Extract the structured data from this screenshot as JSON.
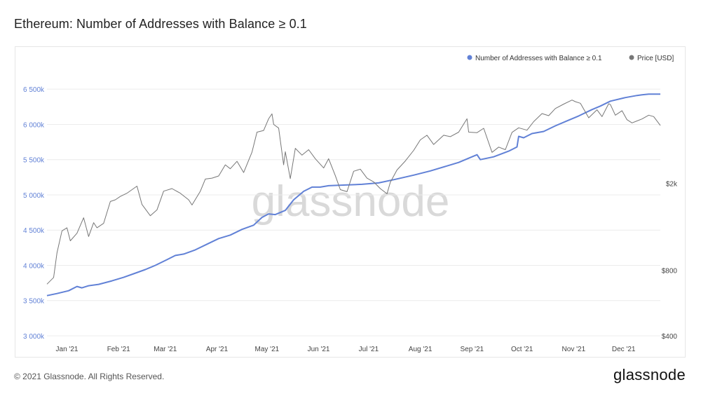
{
  "page": {
    "title": "Ethereum: Number of Addresses with Balance ≥ 0.1",
    "copyright": "© 2021 Glassnode. All Rights Reserved.",
    "logo": "glassnode",
    "watermark": "glassnode"
  },
  "chart_data": {
    "type": "line",
    "title": "Ethereum: Number of Addresses with Balance ≥ 0.1",
    "legend": {
      "placement": "top-right",
      "entries": [
        {
          "label": "Number of Addresses with Balance ≥ 0.1",
          "color": "#6181d6"
        },
        {
          "label": "Price [USD]",
          "color": "#777777"
        }
      ]
    },
    "x_ticks": [
      "Jan '21",
      "Feb '21",
      "Mar '21",
      "Apr '21",
      "May '21",
      "Jun '21",
      "Jul '21",
      "Aug '21",
      "Sep '21",
      "Oct '21",
      "Nov '21",
      "Dec '21"
    ],
    "x_tick_dates": [
      "2021-01-01",
      "2021-02-01",
      "2021-03-01",
      "2021-04-01",
      "2021-05-01",
      "2021-06-01",
      "2021-07-01",
      "2021-08-01",
      "2021-09-01",
      "2021-10-01",
      "2021-11-01",
      "2021-12-01"
    ],
    "x_range": [
      "2020-12-28",
      "2021-12-31"
    ],
    "y_left": {
      "ticks": [
        "3 000k",
        "3 500k",
        "4 000k",
        "4 500k",
        "5 000k",
        "5 500k",
        "6 000k",
        "6 500k"
      ],
      "tick_values": [
        3000000,
        3500000,
        4000000,
        4500000,
        5000000,
        5500000,
        6000000,
        6500000
      ],
      "range": [
        3000000,
        6850000
      ],
      "color": "#6181d6"
    },
    "y_right": {
      "ticks": [
        "$400",
        "$800",
        "$2k"
      ],
      "tick_values": [
        400,
        800,
        2000
      ],
      "scale": "log",
      "range": [
        400,
        7000
      ]
    },
    "grid": true,
    "series": [
      {
        "name": "Number of Addresses with Balance ≥ 0.1",
        "axis": "left",
        "color": "#6181d6",
        "points": [
          [
            "2020-12-28",
            3570000
          ],
          [
            "2021-01-03",
            3600000
          ],
          [
            "2021-01-10",
            3640000
          ],
          [
            "2021-01-15",
            3700000
          ],
          [
            "2021-01-18",
            3680000
          ],
          [
            "2021-01-22",
            3710000
          ],
          [
            "2021-01-28",
            3730000
          ],
          [
            "2021-02-05",
            3780000
          ],
          [
            "2021-02-12",
            3830000
          ],
          [
            "2021-02-18",
            3880000
          ],
          [
            "2021-02-25",
            3940000
          ],
          [
            "2021-03-03",
            4000000
          ],
          [
            "2021-03-10",
            4080000
          ],
          [
            "2021-03-15",
            4140000
          ],
          [
            "2021-03-20",
            4160000
          ],
          [
            "2021-03-27",
            4220000
          ],
          [
            "2021-04-03",
            4300000
          ],
          [
            "2021-04-10",
            4380000
          ],
          [
            "2021-04-17",
            4430000
          ],
          [
            "2021-04-24",
            4510000
          ],
          [
            "2021-05-01",
            4570000
          ],
          [
            "2021-05-06",
            4680000
          ],
          [
            "2021-05-10",
            4730000
          ],
          [
            "2021-05-14",
            4720000
          ],
          [
            "2021-05-20",
            4780000
          ],
          [
            "2021-05-25",
            4930000
          ],
          [
            "2021-05-31",
            5050000
          ],
          [
            "2021-06-05",
            5110000
          ],
          [
            "2021-06-10",
            5110000
          ],
          [
            "2021-06-15",
            5130000
          ],
          [
            "2021-06-25",
            5140000
          ],
          [
            "2021-07-05",
            5150000
          ],
          [
            "2021-07-10",
            5160000
          ],
          [
            "2021-07-15",
            5170000
          ],
          [
            "2021-07-25",
            5220000
          ],
          [
            "2021-08-05",
            5280000
          ],
          [
            "2021-08-15",
            5340000
          ],
          [
            "2021-08-25",
            5410000
          ],
          [
            "2021-09-01",
            5460000
          ],
          [
            "2021-09-08",
            5530000
          ],
          [
            "2021-09-12",
            5570000
          ],
          [
            "2021-09-14",
            5500000
          ],
          [
            "2021-09-22",
            5540000
          ],
          [
            "2021-10-01",
            5620000
          ],
          [
            "2021-10-06",
            5680000
          ],
          [
            "2021-10-07",
            5830000
          ],
          [
            "2021-10-10",
            5810000
          ],
          [
            "2021-10-15",
            5870000
          ],
          [
            "2021-10-22",
            5900000
          ],
          [
            "2021-10-29",
            5980000
          ],
          [
            "2021-11-05",
            6050000
          ],
          [
            "2021-11-12",
            6120000
          ],
          [
            "2021-11-20",
            6210000
          ],
          [
            "2021-11-25",
            6260000
          ],
          [
            "2021-12-01",
            6330000
          ],
          [
            "2021-12-10",
            6380000
          ],
          [
            "2021-12-17",
            6410000
          ],
          [
            "2021-12-20",
            6420000
          ],
          [
            "2021-12-24",
            6430000
          ],
          [
            "2021-12-31",
            6430000
          ]
        ]
      },
      {
        "name": "Price [USD]",
        "axis": "right",
        "color": "#777777",
        "points": [
          [
            "2020-12-28",
            690
          ],
          [
            "2021-01-01",
            740
          ],
          [
            "2021-01-03",
            960
          ],
          [
            "2021-01-06",
            1210
          ],
          [
            "2021-01-09",
            1250
          ],
          [
            "2021-01-11",
            1090
          ],
          [
            "2021-01-15",
            1180
          ],
          [
            "2021-01-19",
            1390
          ],
          [
            "2021-01-22",
            1140
          ],
          [
            "2021-01-25",
            1320
          ],
          [
            "2021-01-27",
            1250
          ],
          [
            "2021-01-31",
            1310
          ],
          [
            "2021-02-04",
            1650
          ],
          [
            "2021-02-07",
            1680
          ],
          [
            "2021-02-10",
            1740
          ],
          [
            "2021-02-14",
            1800
          ],
          [
            "2021-02-20",
            1940
          ],
          [
            "2021-02-23",
            1600
          ],
          [
            "2021-02-28",
            1420
          ],
          [
            "2021-03-04",
            1510
          ],
          [
            "2021-03-08",
            1840
          ],
          [
            "2021-03-13",
            1890
          ],
          [
            "2021-03-18",
            1800
          ],
          [
            "2021-03-23",
            1680
          ],
          [
            "2021-03-25",
            1590
          ],
          [
            "2021-03-30",
            1840
          ],
          [
            "2021-04-02",
            2090
          ],
          [
            "2021-04-06",
            2110
          ],
          [
            "2021-04-10",
            2160
          ],
          [
            "2021-04-14",
            2430
          ],
          [
            "2021-04-17",
            2330
          ],
          [
            "2021-04-21",
            2520
          ],
          [
            "2021-04-25",
            2240
          ],
          [
            "2021-04-30",
            2780
          ],
          [
            "2021-05-03",
            3430
          ],
          [
            "2021-05-07",
            3490
          ],
          [
            "2021-05-10",
            3950
          ],
          [
            "2021-05-12",
            4160
          ],
          [
            "2021-05-13",
            3720
          ],
          [
            "2021-05-16",
            3580
          ],
          [
            "2021-05-19",
            2430
          ],
          [
            "2021-05-20",
            2790
          ],
          [
            "2021-05-23",
            2100
          ],
          [
            "2021-05-26",
            2890
          ],
          [
            "2021-05-30",
            2690
          ],
          [
            "2021-06-03",
            2850
          ],
          [
            "2021-06-07",
            2590
          ],
          [
            "2021-06-12",
            2350
          ],
          [
            "2021-06-15",
            2590
          ],
          [
            "2021-06-19",
            2170
          ],
          [
            "2021-06-22",
            1870
          ],
          [
            "2021-06-26",
            1830
          ],
          [
            "2021-06-30",
            2270
          ],
          [
            "2021-07-04",
            2320
          ],
          [
            "2021-07-08",
            2110
          ],
          [
            "2021-07-12",
            2030
          ],
          [
            "2021-07-16",
            1890
          ],
          [
            "2021-07-20",
            1790
          ],
          [
            "2021-07-22",
            2020
          ],
          [
            "2021-07-26",
            2300
          ],
          [
            "2021-07-31",
            2530
          ],
          [
            "2021-08-05",
            2830
          ],
          [
            "2021-08-09",
            3160
          ],
          [
            "2021-08-13",
            3320
          ],
          [
            "2021-08-17",
            3010
          ],
          [
            "2021-08-23",
            3320
          ],
          [
            "2021-08-27",
            3270
          ],
          [
            "2021-09-01",
            3430
          ],
          [
            "2021-09-06",
            3950
          ],
          [
            "2021-09-07",
            3430
          ],
          [
            "2021-09-12",
            3410
          ],
          [
            "2021-09-16",
            3570
          ],
          [
            "2021-09-21",
            2770
          ],
          [
            "2021-09-25",
            2930
          ],
          [
            "2021-09-29",
            2850
          ],
          [
            "2021-10-03",
            3420
          ],
          [
            "2021-10-07",
            3590
          ],
          [
            "2021-10-12",
            3500
          ],
          [
            "2021-10-16",
            3830
          ],
          [
            "2021-10-21",
            4170
          ],
          [
            "2021-10-25",
            4080
          ],
          [
            "2021-10-29",
            4400
          ],
          [
            "2021-11-03",
            4610
          ],
          [
            "2021-11-08",
            4810
          ],
          [
            "2021-11-10",
            4730
          ],
          [
            "2021-11-13",
            4650
          ],
          [
            "2021-11-18",
            3990
          ],
          [
            "2021-11-23",
            4340
          ],
          [
            "2021-11-26",
            4040
          ],
          [
            "2021-11-30",
            4630
          ],
          [
            "2021-12-01",
            4590
          ],
          [
            "2021-12-04",
            4100
          ],
          [
            "2021-12-08",
            4300
          ],
          [
            "2021-12-11",
            3910
          ],
          [
            "2021-12-14",
            3780
          ],
          [
            "2021-12-17",
            3860
          ],
          [
            "2021-12-20",
            3940
          ],
          [
            "2021-12-24",
            4100
          ],
          [
            "2021-12-27",
            4040
          ],
          [
            "2021-12-31",
            3680
          ]
        ]
      }
    ]
  }
}
